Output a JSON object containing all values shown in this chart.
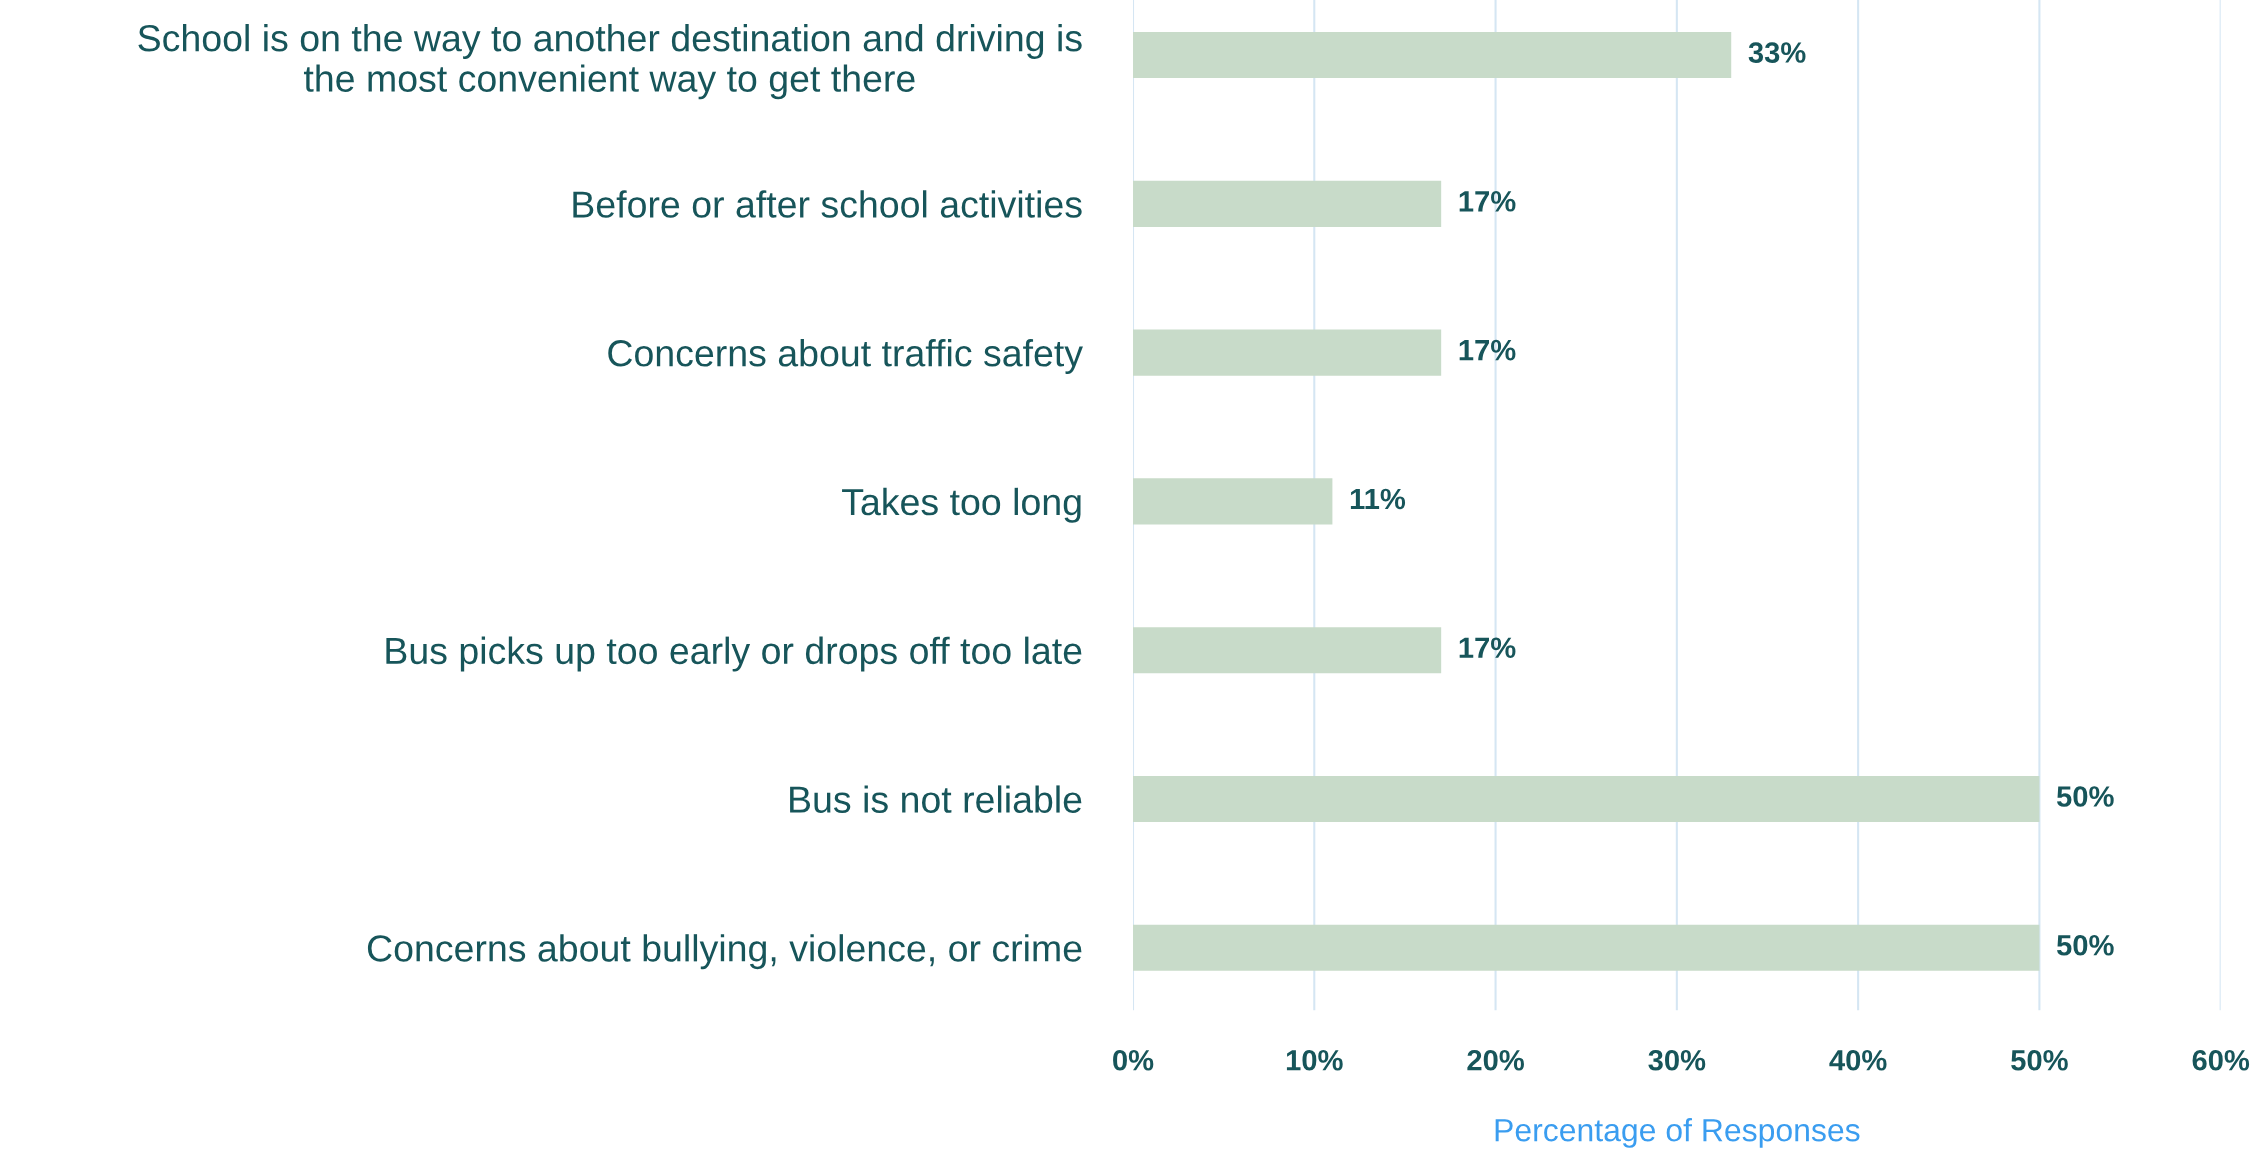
{
  "chart_data": {
    "type": "bar",
    "orientation": "horizontal",
    "xlabel": "Percentage of Responses",
    "categories": [
      "School is on the way to another destination and driving is\nthe most convenient way to get there",
      "Before or after school activities",
      "Concerns about traffic safety",
      "Takes too long",
      "Bus picks up too early or drops off too late",
      "Bus is not reliable",
      "Concerns about bullying, violence, or crime"
    ],
    "values": [
      33,
      17,
      17,
      11,
      17,
      50,
      50
    ],
    "value_labels": [
      "33%",
      "17%",
      "17%",
      "11%",
      "17%",
      "50%",
      "50%"
    ],
    "color": "#c8dbc9",
    "xlim": [
      0,
      60
    ],
    "xticks": [
      {
        "value": 0,
        "label": "0%"
      },
      {
        "value": 10,
        "label": "10%"
      },
      {
        "value": 20,
        "label": "20%"
      },
      {
        "value": 30,
        "label": "30%"
      },
      {
        "value": 40,
        "label": "40%"
      },
      {
        "value": 50,
        "label": "50%"
      },
      {
        "value": 60,
        "label": "60%"
      }
    ],
    "grid": "x"
  }
}
